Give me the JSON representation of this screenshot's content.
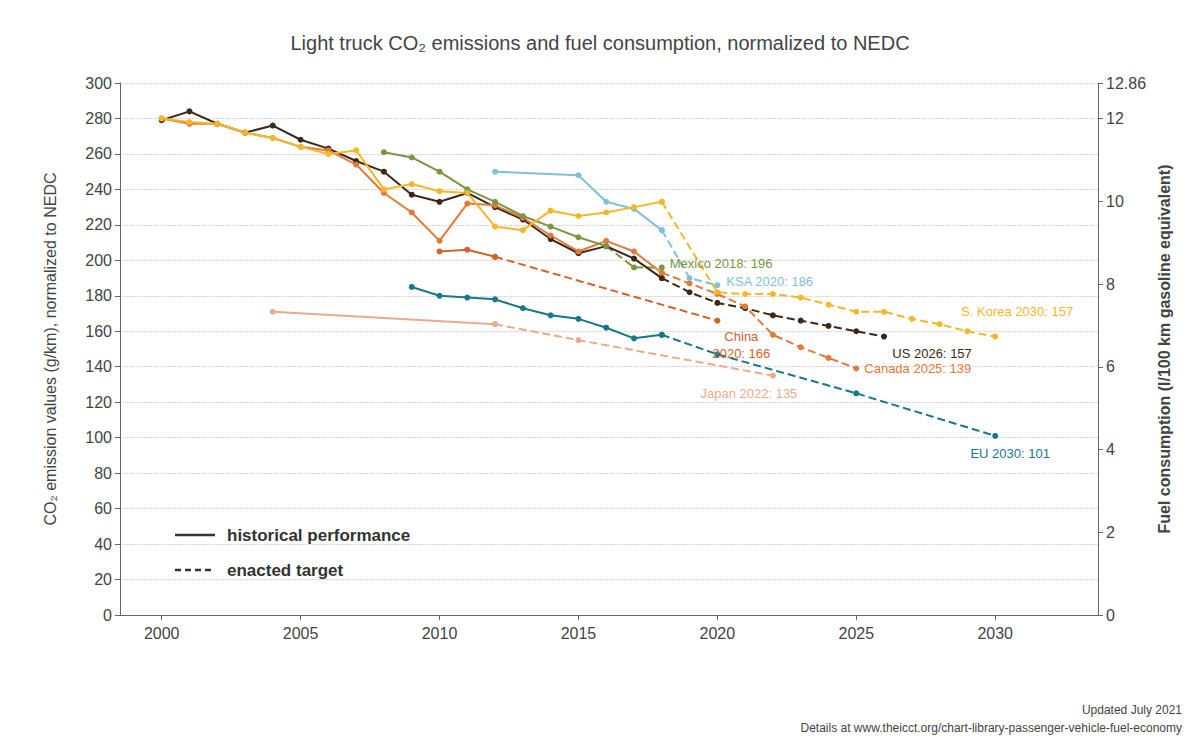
{
  "chart_data": {
    "type": "line",
    "title": "Light truck CO₂ emissions and fuel consumption, normalized to NEDC",
    "y_label": "CO₂ emission values (g/km), normalized to NEDC",
    "y2_label": "Fuel consumption (l/100 km gasoline equivalent)",
    "xlim": [
      1998.5,
      2033.7
    ],
    "xticks": [
      2000,
      2005,
      2010,
      2015,
      2020,
      2025,
      2030
    ],
    "ylim": [
      0,
      300
    ],
    "yticks": [
      0,
      20,
      40,
      60,
      80,
      100,
      120,
      140,
      160,
      180,
      200,
      220,
      240,
      260,
      280,
      300
    ],
    "y2lim": [
      0,
      12.86
    ],
    "y2ticks": [
      0,
      2,
      4,
      6,
      8,
      10,
      12
    ],
    "grid": true,
    "marker": "circle",
    "legend": "lower left",
    "legend_items": [
      {
        "label": "historical performance",
        "line_style": "solid"
      },
      {
        "label": "enacted target",
        "line_style": "dashed"
      }
    ],
    "notes": [
      "Updated July 2021",
      "Details at www.theicct.org/chart-library-passenger-vehicle-fuel-economy"
    ],
    "series": [
      {
        "color": "#3d2817",
        "line_style": "solid",
        "x": [
          2000,
          2001,
          2002,
          2003,
          2004,
          2005,
          2006,
          2007,
          2008,
          2009,
          2010,
          2011,
          2012,
          2013,
          2014,
          2015,
          2016,
          2017,
          2018
        ],
        "values": [
          279,
          284,
          277,
          272,
          276,
          268,
          263,
          256,
          250,
          237,
          233,
          238,
          230,
          223,
          212,
          204,
          208,
          201,
          190
        ]
      },
      {
        "color": "#3d2817",
        "line_style": "dashed",
        "annotation": "US 2026: 157",
        "x": [
          2018,
          2019,
          2020,
          2021,
          2022,
          2023,
          2024,
          2025,
          2026
        ],
        "values": [
          190,
          182,
          176,
          173,
          169,
          166,
          163,
          160,
          157
        ]
      },
      {
        "color": "#e3793a",
        "line_style": "solid",
        "x": [
          2000,
          2001,
          2002,
          2003,
          2004,
          2005,
          2006,
          2007,
          2008,
          2009,
          2010,
          2011,
          2012,
          2013,
          2014,
          2015,
          2016,
          2017,
          2018
        ],
        "values": [
          280,
          277,
          277,
          272,
          269,
          264,
          262,
          254,
          238,
          227,
          211,
          232,
          231,
          224,
          214,
          205,
          211,
          205,
          193
        ]
      },
      {
        "color": "#e3793a",
        "line_style": "dashed",
        "annotation": "Canada 2025: 139",
        "x": [
          2018,
          2019,
          2020,
          2021,
          2022,
          2023,
          2024,
          2025
        ],
        "values": [
          193,
          187,
          181,
          174,
          158,
          151,
          145,
          139
        ]
      },
      {
        "color": "#d4622b",
        "line_style": "solid",
        "x": [
          2010,
          2011,
          2012
        ],
        "values": [
          205,
          206,
          202
        ]
      },
      {
        "color": "#d4622b",
        "line_style": "dashed",
        "annotation": "China\n2020: 166",
        "x": [
          2012,
          2020
        ],
        "values": [
          202,
          166
        ]
      },
      {
        "color": "#7a9640",
        "line_style": "solid",
        "x": [
          2008,
          2009,
          2010,
          2011,
          2012,
          2013,
          2014,
          2015,
          2016
        ],
        "values": [
          261,
          258,
          250,
          240,
          233,
          225,
          219,
          213,
          208
        ]
      },
      {
        "color": "#7a9640",
        "line_style": "dashed",
        "annotation": "Mexico 2018: 196",
        "x": [
          2016,
          2017,
          2018
        ],
        "values": [
          208,
          196,
          196
        ]
      },
      {
        "color": "#7fc3d3",
        "line_style": "solid",
        "x": [
          2012,
          2015,
          2016,
          2017,
          2018
        ],
        "values": [
          250,
          248,
          233,
          229,
          217
        ]
      },
      {
        "color": "#7fc3d3",
        "line_style": "dashed",
        "annotation": "KSA 2020: 186",
        "x": [
          2018,
          2019,
          2020
        ],
        "values": [
          217,
          190,
          186
        ]
      },
      {
        "color": "#f5b72a",
        "line_style": "solid",
        "x": [
          2000,
          2001,
          2002,
          2003,
          2004,
          2005,
          2006,
          2007,
          2008,
          2009,
          2010,
          2011,
          2012,
          2013,
          2014,
          2015,
          2016,
          2017,
          2018
        ],
        "values": [
          280,
          278,
          277,
          272,
          269,
          264,
          260,
          262,
          240,
          243,
          239,
          238,
          219,
          217,
          228,
          225,
          227,
          230,
          233
        ]
      },
      {
        "color": "#f5b72a",
        "line_style": "dashed",
        "annotation": "S. Korea 2030: 157",
        "x": [
          2018,
          2020,
          2021,
          2022,
          2023,
          2024,
          2025,
          2026,
          2027,
          2028,
          2029,
          2030
        ],
        "values": [
          233,
          182,
          181,
          181,
          179,
          175,
          171,
          171,
          167,
          164,
          160,
          157
        ]
      },
      {
        "color": "#17788a",
        "line_style": "solid",
        "x": [
          2009,
          2010,
          2011,
          2012,
          2013,
          2014,
          2015,
          2016,
          2017,
          2018
        ],
        "values": [
          185,
          180,
          179,
          178,
          173,
          169,
          167,
          162,
          156,
          158
        ]
      },
      {
        "color": "#17788a",
        "line_style": "dashed",
        "annotation": "EU 2030: 101",
        "x": [
          2018,
          2020,
          2025,
          2030
        ],
        "values": [
          158,
          147,
          125,
          101
        ]
      },
      {
        "color": "#e9ab8d",
        "line_style": "solid",
        "x": [
          2004,
          2012
        ],
        "values": [
          171,
          164
        ]
      },
      {
        "color": "#e9ab8d",
        "line_style": "dashed",
        "annotation": "Japan 2022: 135",
        "x": [
          2012,
          2015,
          2022
        ],
        "values": [
          164,
          155,
          135
        ]
      }
    ]
  }
}
